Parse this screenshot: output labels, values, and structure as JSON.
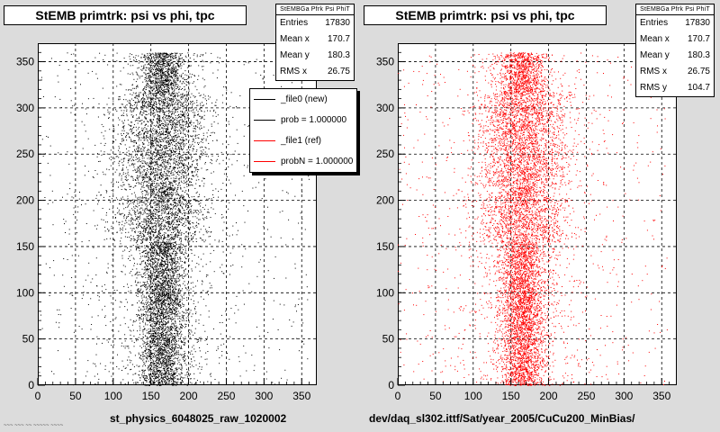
{
  "colors": {
    "panel_bg": "#dcdcdc",
    "series_left": "#000000",
    "series_right": "#ff0000"
  },
  "left": {
    "title": "StEMB primtrk: psi vs phi, tpc",
    "stats": {
      "title": "StEMBGa Pfrk Psi PhiT",
      "rows": [
        {
          "label": "Entries",
          "value": "17830"
        },
        {
          "label": "Mean x",
          "value": "170.7"
        },
        {
          "label": "Mean y",
          "value": "180.3"
        },
        {
          "label": "RMS x",
          "value": "26.75"
        }
      ]
    },
    "legend": [
      {
        "label": "_file0 (new)",
        "color": "#000000"
      },
      {
        "label": "prob = 1.000000",
        "color": "#000000"
      },
      {
        "label": "_file1 (ref)",
        "color": "#ff0000"
      },
      {
        "label": "probN = 1.000000",
        "color": "#ff0000"
      }
    ],
    "xlabel": "st_physics_6048025_raw_1020002",
    "footer": "~~~ ~~~ ~~ ~~~~~ ~~~~"
  },
  "right": {
    "title": "StEMB primtrk: psi vs phi, tpc",
    "stats": {
      "title": "StEMBGa Pfrk Psi PhiT",
      "rows": [
        {
          "label": "Entries",
          "value": "17830"
        },
        {
          "label": "Mean x",
          "value": "170.7"
        },
        {
          "label": "Mean y",
          "value": "180.3"
        },
        {
          "label": "RMS x",
          "value": "26.75"
        },
        {
          "label": "RMS y",
          "value": "104.7"
        }
      ]
    },
    "xlabel": "dev/daq_sl302.ittf/Sat/year_2005/CuCu200_MinBias/"
  },
  "chart_data": [
    {
      "type": "scatter",
      "title": "StEMB primtrk: psi vs phi, tpc",
      "xlabel": "st_physics_6048025_raw_1020002",
      "ylabel": "",
      "xlim": [
        0,
        370
      ],
      "ylim": [
        0,
        370
      ],
      "xticks": [
        0,
        50,
        100,
        150,
        200,
        250,
        300,
        350
      ],
      "yticks": [
        0,
        50,
        100,
        150,
        200,
        250,
        300,
        350
      ],
      "grid": true,
      "series_color": "#000000",
      "density_profile": {
        "entries": 17830,
        "x_center": 165,
        "x_spread": 15,
        "dense_band_x": [
          140,
          190
        ],
        "enhanced_y": [
          180,
          240,
          290
        ],
        "mean_x": 170.7,
        "mean_y": 180.3,
        "rms_x": 26.75
      }
    },
    {
      "type": "scatter",
      "title": "StEMB primtrk: psi vs phi, tpc",
      "xlabel": "dev/daq_sl302.ittf/Sat/year_2005/CuCu200_MinBias/",
      "ylabel": "",
      "xlim": [
        0,
        370
      ],
      "ylim": [
        0,
        370
      ],
      "xticks": [
        0,
        50,
        100,
        150,
        200,
        250,
        300,
        350
      ],
      "yticks": [
        0,
        50,
        100,
        150,
        200,
        250,
        300,
        350
      ],
      "grid": true,
      "series_color": "#ff0000",
      "density_profile": {
        "entries": 17830,
        "x_center": 165,
        "x_spread": 15,
        "dense_band_x": [
          140,
          190
        ],
        "enhanced_y": [
          180,
          240,
          290
        ],
        "mean_x": 170.7,
        "mean_y": 180.3,
        "rms_x": 26.75,
        "rms_y": 104.7
      }
    }
  ]
}
